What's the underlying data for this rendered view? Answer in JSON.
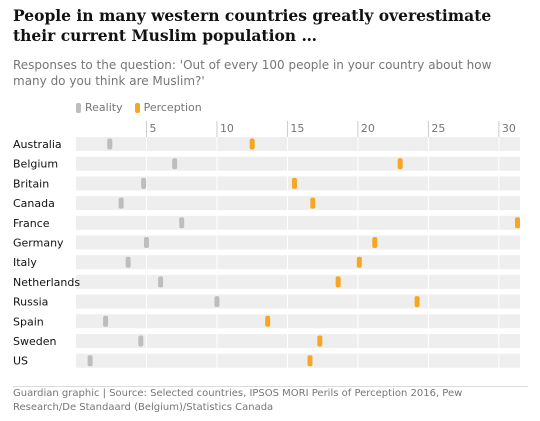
{
  "title": "People in many western countries greatly overestimate their current Muslim population …",
  "subtitle": "Responses to the question: 'Out of every 100 people in your country about how many do you think are Muslim?'",
  "source": "Guardian graphic | Source: Selected countries, IPSOS MORI Perils of Perception 2016, Pew Research/De Standaard (Belgium)/Statistics Canada",
  "colors": {
    "reality": "#bdbdbd",
    "perception": "#f5a623",
    "band": "#eeeeee",
    "grid": "#ffffff"
  },
  "chart_data": {
    "type": "dot",
    "xlim": [
      0,
      31.5
    ],
    "x_ticks": [
      5,
      10,
      15,
      20,
      25,
      30
    ],
    "legend": [
      "Reality",
      "Perception"
    ],
    "legend_position": "top-left",
    "categories": [
      "Australia",
      "Belgium",
      "Britain",
      "Canada",
      "France",
      "Germany",
      "Italy",
      "Netherlands",
      "Russia",
      "Spain",
      "Sweden",
      "US"
    ],
    "series": [
      {
        "name": "Reality",
        "values": [
          2.4,
          7.0,
          4.8,
          3.2,
          7.5,
          5.0,
          3.7,
          6.0,
          10.0,
          2.1,
          4.6,
          1.0
        ]
      },
      {
        "name": "Perception",
        "values": [
          12.5,
          23.0,
          15.5,
          16.8,
          31.5,
          21.2,
          20.1,
          18.6,
          24.2,
          13.6,
          17.3,
          16.6
        ]
      }
    ]
  }
}
